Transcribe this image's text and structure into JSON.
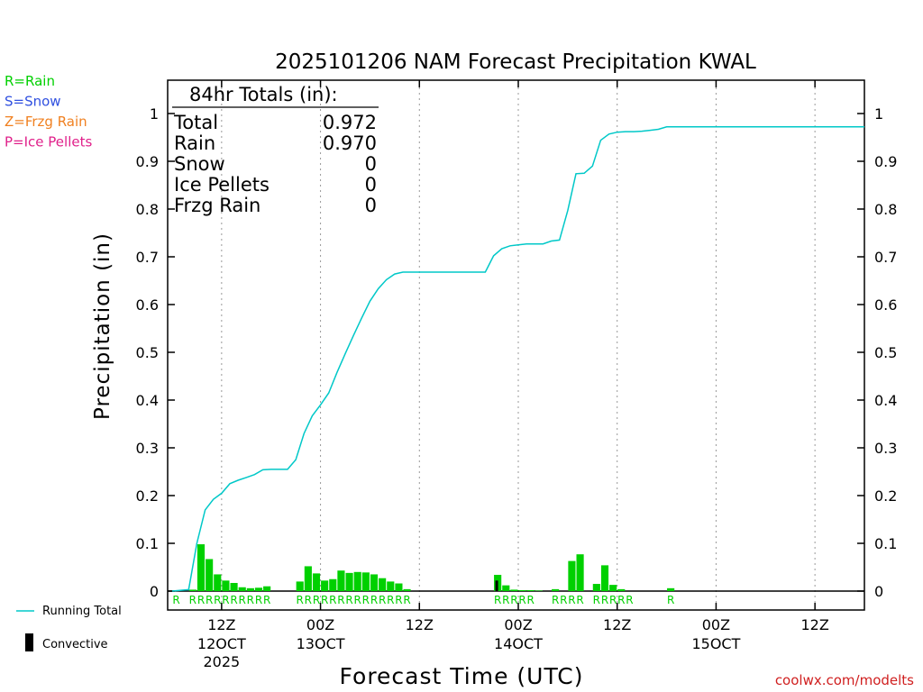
{
  "chart_data": {
    "type": "bar",
    "title": "2025101206 NAM Forecast Precipitation KWAL",
    "xlabel": "Forecast Time (UTC)",
    "ylabel": "Precipitation (in)",
    "ylim": [
      -0.04,
      1.07
    ],
    "y_ticks": [
      0,
      0.1,
      0.2,
      0.3,
      0.4,
      0.5,
      0.6,
      0.7,
      0.8,
      0.9,
      1
    ],
    "y_tick_labels": [
      "0",
      "0.1",
      "0.2",
      "0.3",
      "0.4",
      "0.5",
      "0.6",
      "0.7",
      "0.8",
      "0.9",
      "1"
    ],
    "x_unit": "forecast hour",
    "xlim": [
      0,
      84
    ],
    "x_ticks": [
      {
        "hour": 6,
        "label": "12Z",
        "date": "12OCT",
        "year": "2025"
      },
      {
        "hour": 18,
        "label": "00Z",
        "date": "13OCT",
        "year": ""
      },
      {
        "hour": 30,
        "label": "12Z",
        "date": "",
        "year": ""
      },
      {
        "hour": 42,
        "label": "00Z",
        "date": "14OCT",
        "year": ""
      },
      {
        "hour": 54,
        "label": "12Z",
        "date": "",
        "year": ""
      },
      {
        "hour": 66,
        "label": "00Z",
        "date": "15OCT",
        "year": ""
      },
      {
        "hour": 78,
        "label": "12Z",
        "date": "",
        "year": ""
      }
    ],
    "series": [
      {
        "name": "Hourly Rain",
        "color": "#00d000",
        "kind": "bar",
        "points": [
          [
            2,
            0.003
          ],
          [
            3,
            0.098
          ],
          [
            4,
            0.067
          ],
          [
            5,
            0.035
          ],
          [
            6,
            0.022
          ],
          [
            7,
            0.017
          ],
          [
            8,
            0.008
          ],
          [
            9,
            0.006
          ],
          [
            10,
            0.007
          ],
          [
            11,
            0.01
          ],
          [
            15,
            0.02
          ],
          [
            16,
            0.052
          ],
          [
            17,
            0.037
          ],
          [
            18,
            0.022
          ],
          [
            19,
            0.025
          ],
          [
            20,
            0.043
          ],
          [
            21,
            0.038
          ],
          [
            22,
            0.04
          ],
          [
            23,
            0.039
          ],
          [
            24,
            0.035
          ],
          [
            25,
            0.027
          ],
          [
            26,
            0.02
          ],
          [
            27,
            0.016
          ],
          [
            28,
            0.004
          ],
          [
            39,
            0.034
          ],
          [
            40,
            0.012
          ],
          [
            41,
            0.003
          ],
          [
            42,
            0.002
          ],
          [
            43,
            0.002
          ],
          [
            44,
            0.001
          ],
          [
            46,
            0.004
          ],
          [
            48,
            0.063
          ],
          [
            49,
            0.077
          ],
          [
            51,
            0.015
          ],
          [
            52,
            0.054
          ],
          [
            53,
            0.013
          ],
          [
            54,
            0.004
          ],
          [
            60,
            0.006
          ]
        ]
      },
      {
        "name": "Convective",
        "color": "#000000",
        "kind": "bar",
        "points": [
          [
            39,
            0.022
          ]
        ]
      },
      {
        "name": "Running Total",
        "color": "#00c8c8",
        "kind": "line",
        "points": [
          [
            0,
            0
          ],
          [
            2,
            0.003
          ],
          [
            3,
            0.1
          ],
          [
            4,
            0.17
          ],
          [
            5,
            0.192
          ],
          [
            6,
            0.205
          ],
          [
            7,
            0.225
          ],
          [
            8,
            0.232
          ],
          [
            9,
            0.238
          ],
          [
            10,
            0.244
          ],
          [
            11,
            0.254
          ],
          [
            12,
            0.255
          ],
          [
            13,
            0.255
          ],
          [
            14,
            0.255
          ],
          [
            15,
            0.275
          ],
          [
            16,
            0.33
          ],
          [
            17,
            0.367
          ],
          [
            18,
            0.39
          ],
          [
            19,
            0.415
          ],
          [
            20,
            0.458
          ],
          [
            21,
            0.497
          ],
          [
            22,
            0.535
          ],
          [
            23,
            0.572
          ],
          [
            24,
            0.607
          ],
          [
            25,
            0.633
          ],
          [
            26,
            0.652
          ],
          [
            27,
            0.664
          ],
          [
            28,
            0.668
          ],
          [
            29,
            0.668
          ],
          [
            30,
            0.668
          ],
          [
            35,
            0.668
          ],
          [
            38,
            0.668
          ],
          [
            39,
            0.702
          ],
          [
            40,
            0.717
          ],
          [
            41,
            0.723
          ],
          [
            42,
            0.725
          ],
          [
            43,
            0.727
          ],
          [
            44,
            0.727
          ],
          [
            45,
            0.727
          ],
          [
            46,
            0.733
          ],
          [
            47,
            0.735
          ],
          [
            48,
            0.797
          ],
          [
            49,
            0.874
          ],
          [
            50,
            0.875
          ],
          [
            51,
            0.89
          ],
          [
            52,
            0.944
          ],
          [
            53,
            0.957
          ],
          [
            54,
            0.961
          ],
          [
            55,
            0.962
          ],
          [
            56,
            0.962
          ],
          [
            57,
            0.963
          ],
          [
            58,
            0.965
          ],
          [
            59,
            0.967
          ],
          [
            60,
            0.972
          ],
          [
            70,
            0.972
          ],
          [
            84,
            0.972
          ]
        ]
      }
    ],
    "precip_type_markers": [
      {
        "label": "R",
        "hours": [
          0,
          2,
          3,
          4,
          5,
          6,
          7,
          8,
          9,
          10,
          11,
          15,
          16,
          17,
          18,
          19,
          20,
          21,
          22,
          23,
          24,
          25,
          26,
          27,
          28,
          39,
          40,
          41,
          42,
          43,
          46,
          47,
          48,
          49,
          51,
          52,
          53,
          54,
          55,
          60
        ]
      }
    ],
    "totals_box": {
      "title": "84hr Totals (in):",
      "rows": [
        {
          "label": "Total",
          "value": "0.972"
        },
        {
          "label": "Rain",
          "value": "0.970"
        },
        {
          "label": "Snow",
          "value": "0"
        },
        {
          "label": "Ice Pellets",
          "value": "0"
        },
        {
          "label": "Frzg Rain",
          "value": "0"
        }
      ]
    },
    "type_legend": [
      {
        "text": "R=Rain",
        "color": "#00d000"
      },
      {
        "text": "S=Snow",
        "color": "#3050e0"
      },
      {
        "text": "Z=Frzg Rain",
        "color": "#f08020"
      },
      {
        "text": "P=Ice Pellets",
        "color": "#e0208a"
      }
    ],
    "legend": {
      "running_total": "Running Total",
      "convective": "Convective"
    },
    "credit": "coolwx.com/modelts",
    "credit_color": "#d02020"
  }
}
